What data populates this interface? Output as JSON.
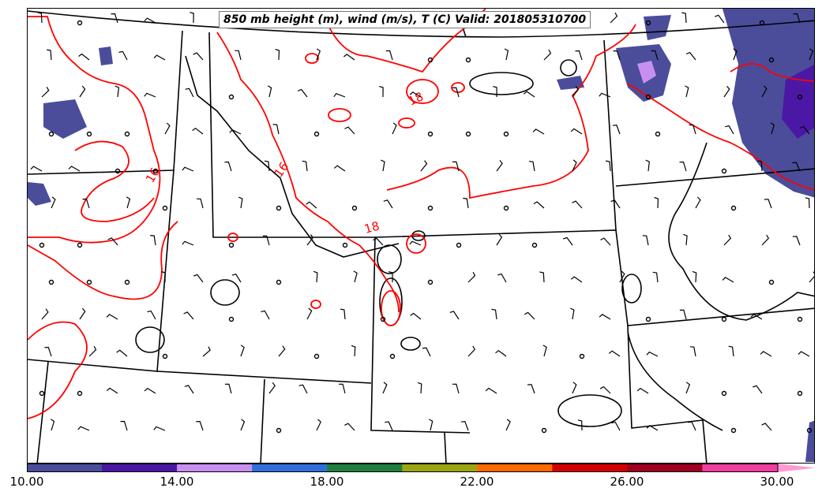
{
  "title": "850 mb height (m), wind (m/s), T (C) Valid: 201805310700",
  "contour_labels": [
    "18",
    "16",
    "18",
    "16"
  ],
  "colorbar": {
    "colors": [
      "#4b4d9b",
      "#4b18a6",
      "#c88ff1",
      "#2f6fdc",
      "#1f7f3e",
      "#9ca612",
      "#ff6a00",
      "#d40000",
      "#a0001f",
      "#ef3f9f",
      "#ff9ad0"
    ],
    "tick_labels": [
      "10.00",
      "14.00",
      "18.00",
      "22.00",
      "26.00",
      "30.00"
    ],
    "range": [
      10,
      32
    ],
    "extend": "max"
  },
  "colors": {
    "temperature_contour": "#ff0000",
    "height_contour": "#000000",
    "state_lines": "#000000",
    "barbs": "#000000"
  }
}
